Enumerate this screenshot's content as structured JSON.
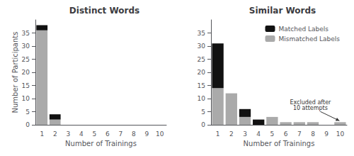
{
  "chart_data": [
    {
      "type": "bar",
      "title": "Distinct Words",
      "xlabel": "Number of Trainings",
      "ylabel": "Number of Participants",
      "categories": [
        "1",
        "2",
        "3",
        "4",
        "5",
        "6",
        "7",
        "8",
        "9",
        "10"
      ],
      "series": [
        {
          "name": "Mismatched Labels",
          "color": "#aaaaaa",
          "values": [
            36,
            2,
            0,
            0,
            0,
            0,
            0,
            0,
            0,
            0
          ]
        },
        {
          "name": "Matched Labels",
          "color": "#111111",
          "values": [
            2,
            2,
            0,
            0,
            0,
            0,
            0,
            0,
            0,
            0
          ]
        }
      ],
      "stacked": true,
      "ylim": [
        0,
        40
      ],
      "yticks": [
        0,
        5,
        10,
        15,
        20,
        25,
        30,
        35
      ],
      "grid": false,
      "legend": false
    },
    {
      "type": "bar",
      "title": "Similar Words",
      "xlabel": "Number of Trainings",
      "categories": [
        "1",
        "2",
        "3",
        "4",
        "5",
        "6",
        "7",
        "8",
        "9",
        "10"
      ],
      "series": [
        {
          "name": "Mismatched Labels",
          "color": "#aaaaaa",
          "values": [
            14,
            12,
            3,
            0,
            3,
            1,
            1,
            1,
            0,
            1
          ]
        },
        {
          "name": "Matched Labels",
          "color": "#111111",
          "values": [
            17,
            0,
            3,
            2,
            0,
            0,
            0,
            0,
            0,
            0
          ]
        }
      ],
      "stacked": true,
      "ylim": [
        0,
        40
      ],
      "yticks": [
        0,
        5,
        10,
        15,
        20,
        25,
        30,
        35
      ],
      "grid": false,
      "legend": "upper right",
      "annotations": [
        {
          "text": "Excluded after\n10 attempts",
          "x": "10",
          "y": 1
        }
      ]
    }
  ]
}
